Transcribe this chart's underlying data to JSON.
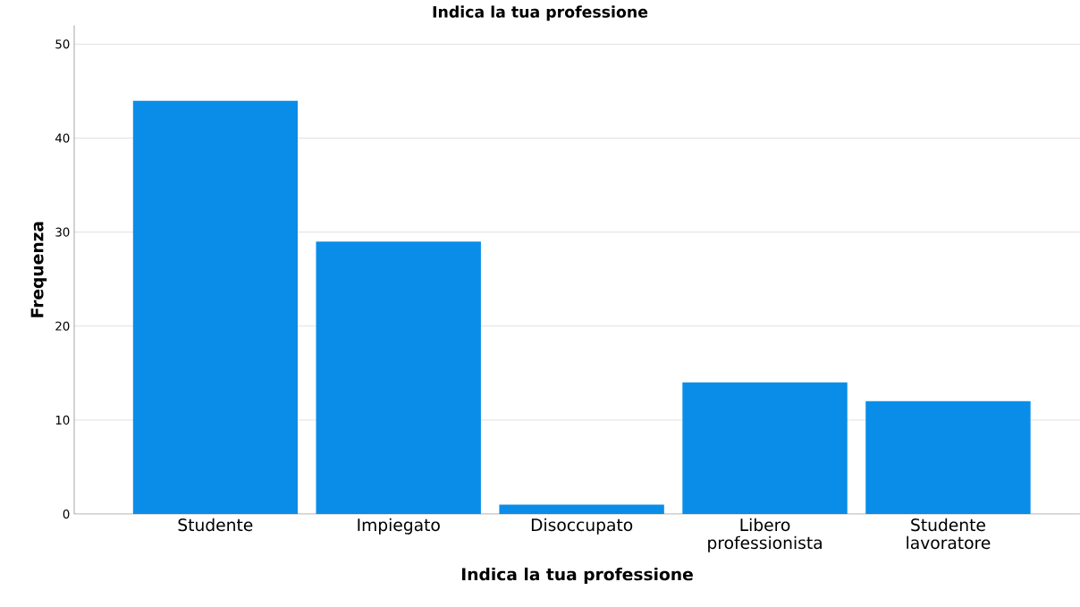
{
  "chart_data": {
    "type": "bar",
    "title": "Indica la tua professione",
    "xlabel": "Indica la tua professione",
    "ylabel": "Frequenza",
    "categories": [
      "Studente",
      "Impiegato",
      "Disoccupato",
      "Libero professionista",
      "Studente lavoratore"
    ],
    "values": [
      44,
      29,
      1,
      14,
      12
    ],
    "color": "#0a8de8",
    "ylim": [
      0,
      52
    ],
    "yticks": [
      0,
      10,
      20,
      30,
      40,
      50
    ],
    "grid": "y"
  }
}
